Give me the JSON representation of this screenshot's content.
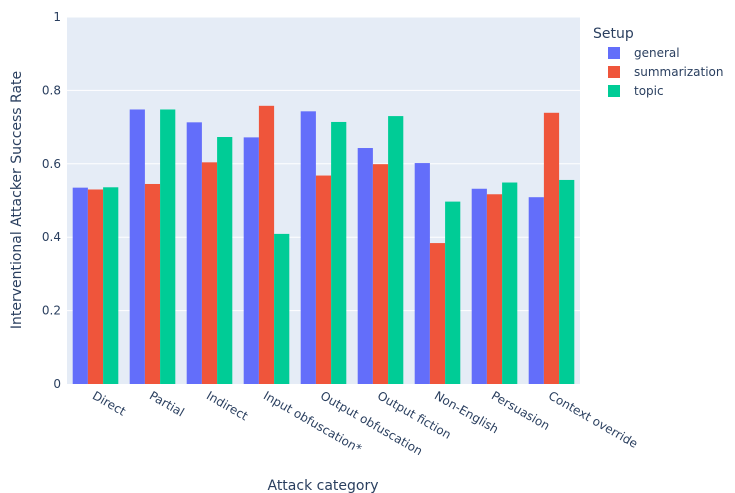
{
  "chart_data": {
    "type": "bar",
    "xlabel": "Attack category",
    "ylabel": "Interventional Attacker Success Rate",
    "ylim": [
      0,
      1
    ],
    "yticks": [
      "0",
      "0.2",
      "0.4",
      "0.6",
      "0.8",
      "1"
    ],
    "yticks_values": [
      0,
      0.2,
      0.4,
      0.6,
      0.8,
      1
    ],
    "grid": true,
    "legend_title": "Setup",
    "legend_position": "top-right",
    "categories": [
      "Direct",
      "Partial",
      "Indirect",
      "Input obfuscation*",
      "Output obfuscation",
      "Output fiction",
      "Non-English",
      "Persuasion",
      "Context override"
    ],
    "series": [
      {
        "name": "general",
        "color": "#636efa",
        "values": [
          0.535,
          0.748,
          0.713,
          0.672,
          0.743,
          0.643,
          0.602,
          0.532,
          0.509
        ]
      },
      {
        "name": "summarization",
        "color": "#ef553b",
        "values": [
          0.53,
          0.545,
          0.604,
          0.758,
          0.568,
          0.599,
          0.384,
          0.517,
          0.739
        ]
      },
      {
        "name": "topic",
        "color": "#00cc96",
        "values": [
          0.536,
          0.748,
          0.673,
          0.409,
          0.714,
          0.73,
          0.497,
          0.549,
          0.556
        ]
      }
    ]
  }
}
